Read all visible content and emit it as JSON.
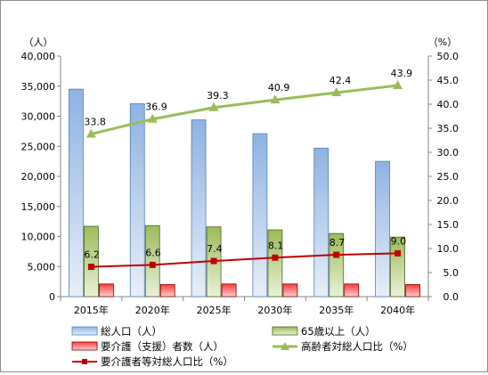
{
  "chart_data": {
    "type": "bar",
    "categories": [
      "2015年",
      "2020年",
      "2025年",
      "2030年",
      "2035年",
      "2040年"
    ],
    "left_axis": {
      "unit": "（人）",
      "ylim": [
        0,
        40000
      ],
      "ticks": [
        "0",
        "5,000",
        "10,000",
        "15,000",
        "20,000",
        "25,000",
        "30,000",
        "35,000",
        "40,000"
      ]
    },
    "right_axis": {
      "unit": "（%）",
      "ylim": [
        0,
        50
      ],
      "ticks": [
        "0.0",
        "5.0",
        "10.0",
        "15.0",
        "20.0",
        "25.0",
        "30.0",
        "35.0",
        "40.0",
        "45.0",
        "50.0"
      ]
    },
    "series": [
      {
        "name": "総人口（人）",
        "type": "bar",
        "axis": "left",
        "color": "#8db3e2",
        "values": [
          34500,
          32100,
          29400,
          27100,
          24700,
          22500
        ]
      },
      {
        "name": "65歳以上（人）",
        "type": "bar",
        "axis": "left",
        "color": "#9bbb59",
        "values": [
          11700,
          11800,
          11600,
          11100,
          10500,
          9900
        ]
      },
      {
        "name": "要介護（支援）者数（人）",
        "type": "bar",
        "axis": "left",
        "color": "#ff3b3b",
        "values": [
          2100,
          2000,
          2100,
          2100,
          2100,
          2000
        ]
      },
      {
        "name": "高齢者対総人口比（%）",
        "type": "line",
        "axis": "right",
        "color": "#9bbb59",
        "marker": "triangle",
        "values": [
          33.8,
          36.9,
          39.3,
          40.9,
          42.4,
          43.9
        ],
        "labels": [
          "33.8",
          "36.9",
          "39.3",
          "40.9",
          "42.4",
          "43.9"
        ]
      },
      {
        "name": "要介護者等対総人口比（%）",
        "type": "line",
        "axis": "right",
        "color": "#c00000",
        "marker": "square",
        "values": [
          6.2,
          6.6,
          7.4,
          8.1,
          8.7,
          9.0
        ],
        "labels": [
          "6.2",
          "6.6",
          "7.4",
          "8.1",
          "8.7",
          "9.0"
        ]
      }
    ],
    "grid": false,
    "legend_position": "bottom"
  }
}
